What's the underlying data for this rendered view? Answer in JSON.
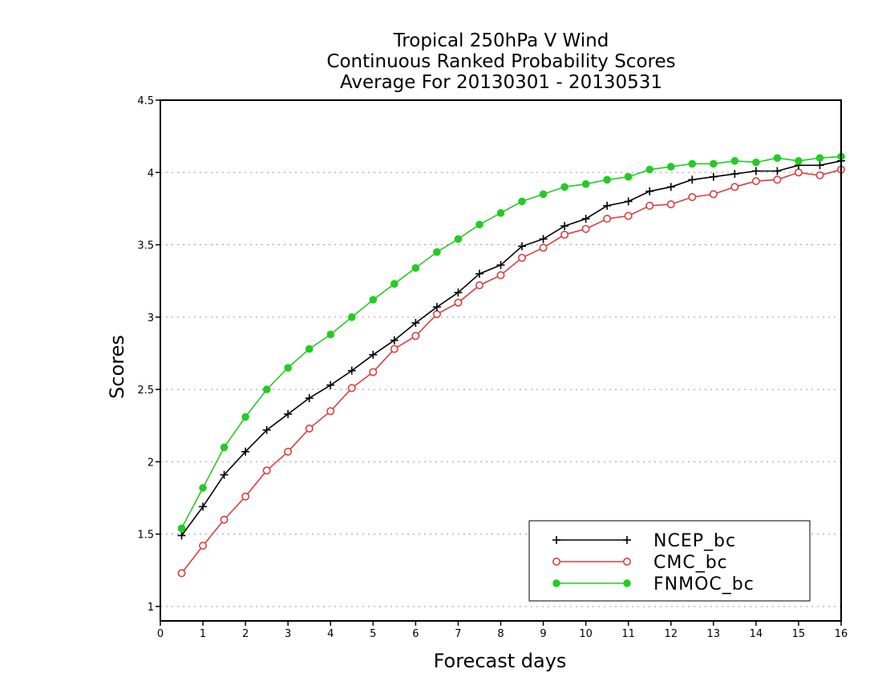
{
  "chart_data": {
    "type": "line",
    "title": [
      "Tropical 250hPa V Wind",
      "Continuous Ranked Probability Scores",
      "Average For 20130301 - 20130531"
    ],
    "xlabel": "Forecast days",
    "ylabel": "Scores",
    "xlim": [
      0,
      16
    ],
    "ylim": [
      0.9,
      4.5
    ],
    "xticks": [
      "0",
      "1",
      "2",
      "3",
      "4",
      "5",
      "6",
      "7",
      "8",
      "9",
      "10",
      "11",
      "12",
      "13",
      "14",
      "15",
      "16"
    ],
    "yticks": [
      "1",
      "1.5",
      "2",
      "2.5",
      "3",
      "3.5",
      "4",
      "4.5"
    ],
    "grid": "dotted horizontal",
    "legend_position": "bottom-right",
    "x": [
      0.5,
      1,
      1.5,
      2,
      2.5,
      3,
      3.5,
      4,
      4.5,
      5,
      5.5,
      6,
      6.5,
      7,
      7.5,
      8,
      8.5,
      9,
      9.5,
      10,
      10.5,
      11,
      11.5,
      12,
      12.5,
      13,
      13.5,
      14,
      14.5,
      15,
      15.5,
      16
    ],
    "series": [
      {
        "name": "NCEP_bc",
        "color": "#000000",
        "marker": "plus",
        "values": [
          1.49,
          1.69,
          1.91,
          2.07,
          2.22,
          2.33,
          2.44,
          2.53,
          2.63,
          2.74,
          2.84,
          2.96,
          3.07,
          3.17,
          3.3,
          3.36,
          3.49,
          3.54,
          3.63,
          3.68,
          3.77,
          3.8,
          3.87,
          3.9,
          3.95,
          3.97,
          3.99,
          4.01,
          4.01,
          4.05,
          4.05,
          4.08
        ]
      },
      {
        "name": "CMC_bc",
        "color": "#e03c3c",
        "marker": "open-circle",
        "values": [
          1.23,
          1.42,
          1.6,
          1.76,
          1.94,
          2.07,
          2.23,
          2.35,
          2.51,
          2.62,
          2.78,
          2.87,
          3.02,
          3.1,
          3.22,
          3.29,
          3.41,
          3.48,
          3.57,
          3.61,
          3.68,
          3.7,
          3.77,
          3.78,
          3.83,
          3.85,
          3.9,
          3.94,
          3.95,
          4.0,
          3.98,
          4.02
        ]
      },
      {
        "name": "FNMOC_bc",
        "color": "#22cc22",
        "marker": "filled-circle",
        "values": [
          1.54,
          1.82,
          2.1,
          2.31,
          2.5,
          2.65,
          2.78,
          2.88,
          3.0,
          3.12,
          3.23,
          3.34,
          3.45,
          3.54,
          3.64,
          3.72,
          3.8,
          3.85,
          3.9,
          3.92,
          3.95,
          3.97,
          4.02,
          4.04,
          4.06,
          4.06,
          4.08,
          4.07,
          4.1,
          4.08,
          4.1,
          4.11
        ]
      }
    ]
  }
}
